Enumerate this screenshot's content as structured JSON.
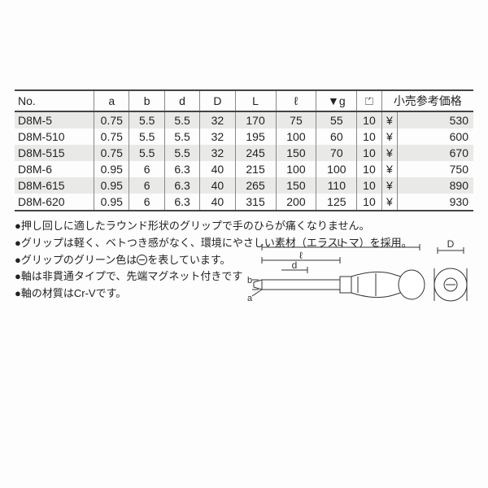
{
  "table": {
    "headers": {
      "no": "No.",
      "a": "a",
      "b": "b",
      "d": "d",
      "D": "D",
      "L": "L",
      "l": "ℓ",
      "g": "▼g",
      "pack": "📦",
      "price": "小売参考価格"
    },
    "rows": [
      {
        "no": "D8M-5",
        "a": "0.75",
        "b": "5.5",
        "d": "5.5",
        "D": "32",
        "L": "170",
        "l": "75",
        "g": "55",
        "pack": "10",
        "yen": "¥",
        "price": "530"
      },
      {
        "no": "D8M-510",
        "a": "0.75",
        "b": "5.5",
        "d": "5.5",
        "D": "32",
        "L": "195",
        "l": "100",
        "g": "60",
        "pack": "10",
        "yen": "¥",
        "price": "600"
      },
      {
        "no": "D8M-515",
        "a": "0.75",
        "b": "5.5",
        "d": "5.5",
        "D": "32",
        "L": "245",
        "l": "150",
        "g": "70",
        "pack": "10",
        "yen": "¥",
        "price": "670"
      },
      {
        "no": "D8M-6",
        "a": "0.95",
        "b": "6",
        "d": "6.3",
        "D": "40",
        "L": "215",
        "l": "100",
        "g": "100",
        "pack": "10",
        "yen": "¥",
        "price": "750"
      },
      {
        "no": "D8M-615",
        "a": "0.95",
        "b": "6",
        "d": "6.3",
        "D": "40",
        "L": "265",
        "l": "150",
        "g": "110",
        "pack": "10",
        "yen": "¥",
        "price": "890"
      },
      {
        "no": "D8M-620",
        "a": "0.95",
        "b": "6",
        "d": "6.3",
        "D": "40",
        "L": "315",
        "l": "200",
        "g": "125",
        "pack": "10",
        "yen": "¥",
        "price": "930"
      }
    ]
  },
  "notes": {
    "n1": "押し回しに適したラウンド形状のグリップで手のひらが痛くなりません。",
    "n2": "グリップは軽く、ベトつき感がなく、環境にやさしい素材（エラストマ）を採用。",
    "n3a": "グリップのグリーン色は",
    "n3b": "を表しています。",
    "n4": "軸は非貫通タイプで、先端マグネット付きです",
    "n5": "軸の材質はCr-Vです。"
  },
  "diagram": {
    "labels": {
      "L": "L",
      "l": "ℓ",
      "d": "d",
      "b": "b",
      "a": "a",
      "D": "D"
    },
    "colors": {
      "stroke": "#333333",
      "fill_light": "#ffffff"
    }
  }
}
